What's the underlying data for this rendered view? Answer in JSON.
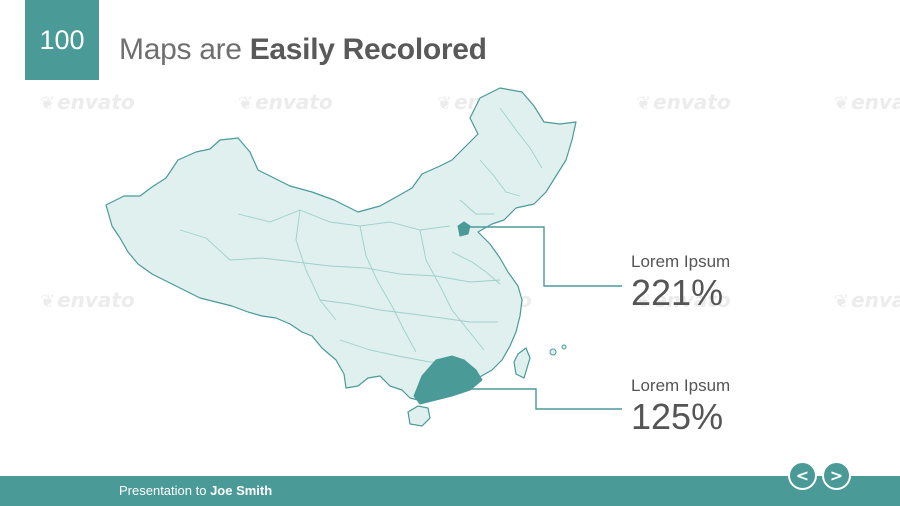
{
  "slide": {
    "number": "100",
    "title_regular": "Maps are ",
    "title_bold": "Easily Recolored"
  },
  "watermark": {
    "text": "envato",
    "icon": "leaf-icon"
  },
  "map": {
    "region": "China",
    "fill_color": "#dff0ef",
    "stroke_color": "#4a9a98",
    "highlight_color": "#4a9a98",
    "highlighted_regions": [
      "Beijing",
      "Guangdong"
    ]
  },
  "callouts": [
    {
      "label": "Lorem Ipsum",
      "value": "221%"
    },
    {
      "label": "Lorem Ipsum",
      "value": "125%"
    }
  ],
  "footer": {
    "text_regular": "Presentation to ",
    "text_bold": "Joe Smith"
  },
  "nav": {
    "prev_label": "<",
    "next_label": ">"
  },
  "colors": {
    "accent": "#4a9a98",
    "text": "#555555"
  }
}
